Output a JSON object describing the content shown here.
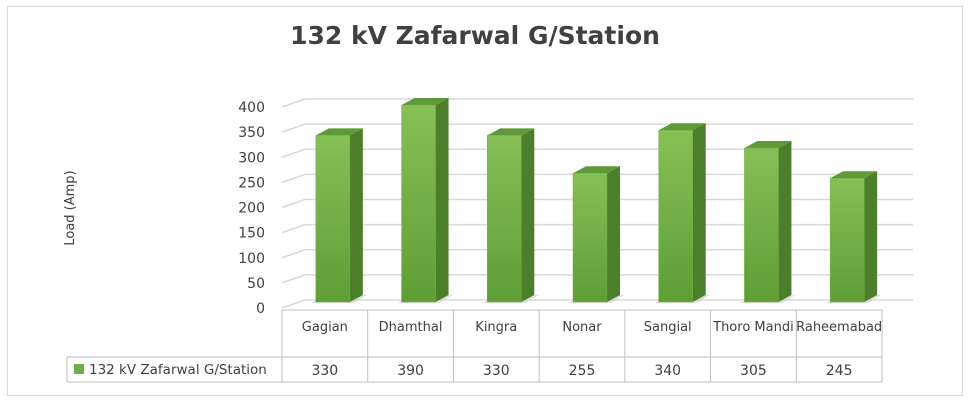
{
  "chart_data": {
    "type": "bar3d",
    "title": "132 kV Zafarwal G/Station",
    "y_label": "Load (Amp)",
    "categories": [
      "Gagian",
      "Dhamthal",
      "Kingra",
      "Nonar",
      "Sangial",
      "Thoro Mandi",
      "Raheemabad"
    ],
    "series": [
      {
        "name": "132 kV Zafarwal G/Station",
        "color": "#70ad47",
        "values": [
          330,
          390,
          330,
          255,
          340,
          305,
          245
        ]
      }
    ],
    "ylim": [
      0,
      400
    ],
    "yticks": [
      0,
      50,
      100,
      150,
      200,
      250,
      300,
      350,
      400
    ],
    "grid": true,
    "data_table": true
  }
}
